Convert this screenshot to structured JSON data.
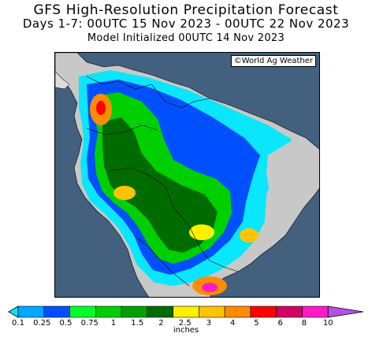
{
  "header": {
    "title": "GFS High-Resolution Precipitation Forecast",
    "period": "Days 1-7: 00UTC 15 Nov 2023 - 00UTC 22 Nov 2023",
    "init": "Model Initialized 00UTC 14 Nov 2023"
  },
  "map": {
    "region": "South America",
    "credit": "©World Ag Weather",
    "colors": {
      "ocean": "#43607e",
      "land_dry": "#c8c8c8",
      "outside_region": "#dcdcdc",
      "borders": "#000000"
    }
  },
  "legend": {
    "units": "inches",
    "ticks": [
      "0.1",
      "0.25",
      "0.5",
      "0.75",
      "1",
      "1.5",
      "2",
      "2.5",
      "3",
      "4",
      "5",
      "6",
      "8",
      "10"
    ],
    "colors": [
      "#00e8ff",
      "#00a8ff",
      "#0050ff",
      "#00ff28",
      "#00d000",
      "#00a000",
      "#006c00",
      "#fff000",
      "#ffc400",
      "#ff8c00",
      "#ff0000",
      "#d00064",
      "#ff1ac8",
      "#b450e6"
    ]
  }
}
